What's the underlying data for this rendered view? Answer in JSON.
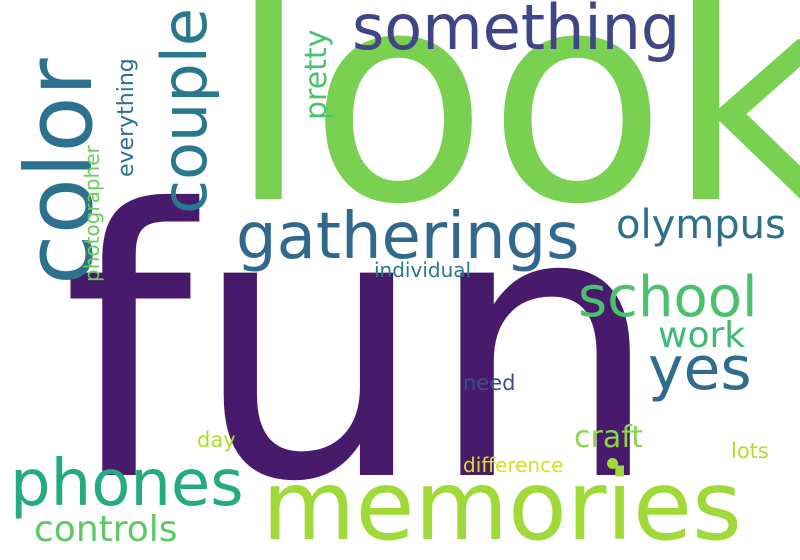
{
  "words": [
    {
      "text": "fun",
      "color": "#481a6c",
      "rotated": false
    },
    {
      "text": "look",
      "color": "#7ad151",
      "rotated": false
    },
    {
      "text": "memories",
      "color": "#a0da39",
      "rotated": false
    },
    {
      "text": "color",
      "color": "#2c728e",
      "rotated": true
    },
    {
      "text": "couple",
      "color": "#2a788e",
      "rotated": true
    },
    {
      "text": "something",
      "color": "#414487",
      "rotated": false
    },
    {
      "text": "gatherings",
      "color": "#31688e",
      "rotated": false
    },
    {
      "text": "phones",
      "color": "#25ab82",
      "rotated": false
    },
    {
      "text": "school",
      "color": "#4ac16d",
      "rotated": false
    },
    {
      "text": "yes",
      "color": "#2f6c8e",
      "rotated": false
    },
    {
      "text": "olympus",
      "color": "#2d708e",
      "rotated": false
    },
    {
      "text": "controls",
      "color": "#5ec962",
      "rotated": false
    },
    {
      "text": "work",
      "color": "#3bbb75",
      "rotated": false
    },
    {
      "text": "pretty",
      "color": "#4ac16d",
      "rotated": true
    },
    {
      "text": "everything",
      "color": "#2c728e",
      "rotated": true
    },
    {
      "text": "photographer",
      "color": "#6ccd5a",
      "rotated": true
    },
    {
      "text": "craft",
      "color": "#8bd646",
      "rotated": false
    },
    {
      "text": "individual",
      "color": "#2a788e",
      "rotated": false
    },
    {
      "text": "need",
      "color": "#3e4c8a",
      "rotated": false
    },
    {
      "text": "day",
      "color": "#addc30",
      "rotated": false
    },
    {
      "text": "lots",
      "color": "#b5de2b",
      "rotated": false
    },
    {
      "text": "difference",
      "color": "#d8e219",
      "rotated": false
    }
  ],
  "dot": {
    "color": "#a0da39"
  }
}
